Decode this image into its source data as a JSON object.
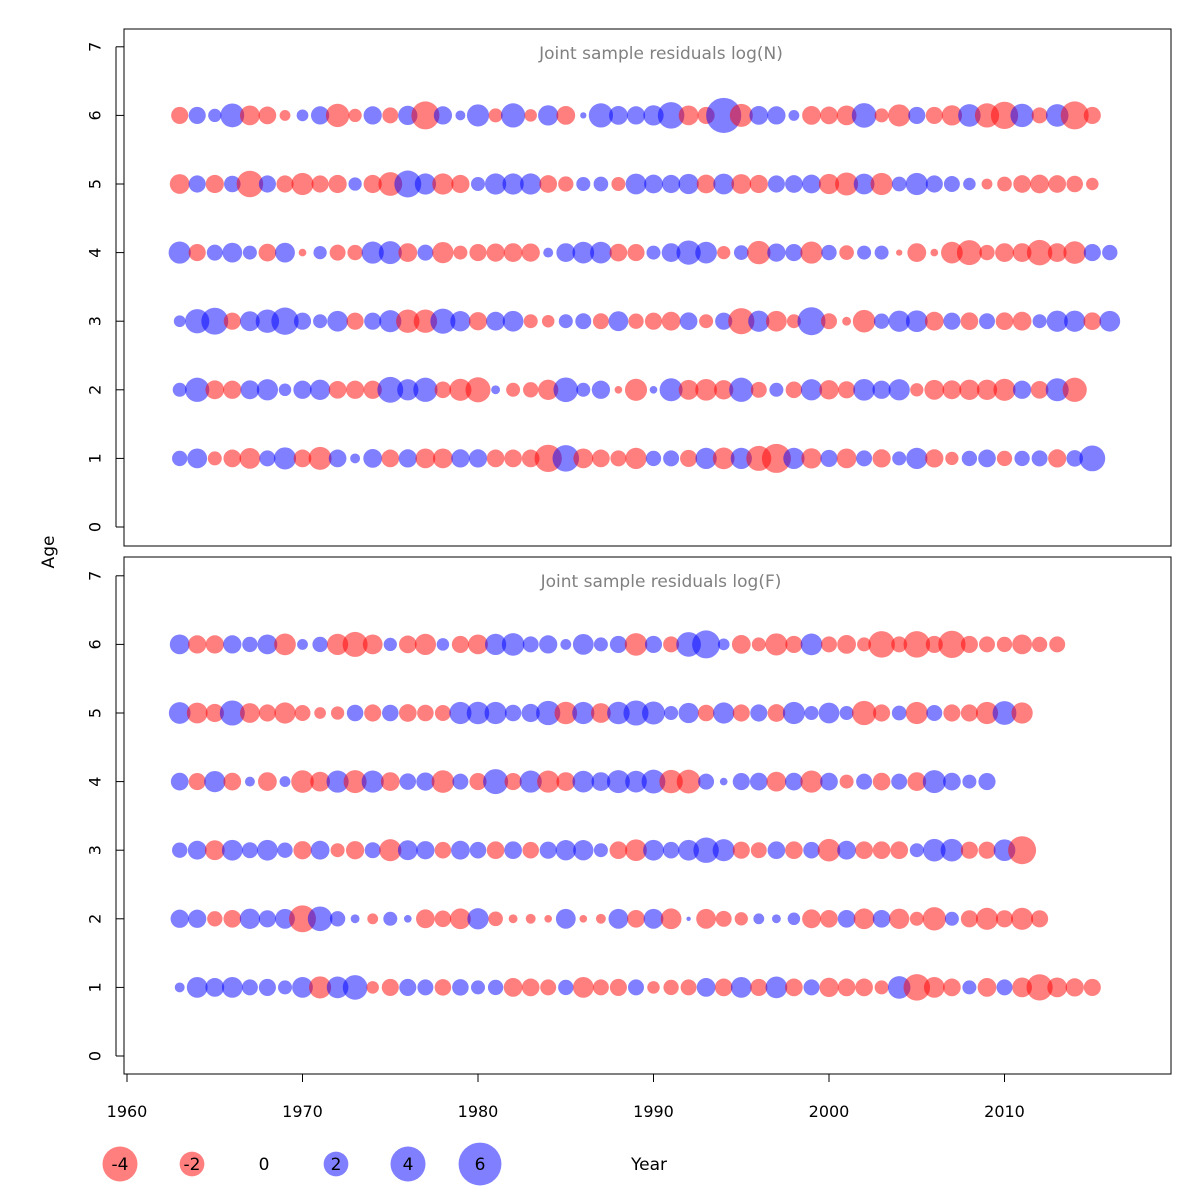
{
  "chart_data": {
    "type": "bubble",
    "ylabel": "Age",
    "xlabel": "Year",
    "xlim": [
      1960,
      2018
    ],
    "ylim": [
      0,
      7
    ],
    "xticks": [
      "1960",
      "1970",
      "1980",
      "1990",
      "2000",
      "2010"
    ],
    "yticks": [
      "0",
      "1",
      "2",
      "3",
      "4",
      "5",
      "6",
      "7"
    ],
    "years": [
      1963,
      1964,
      1965,
      1966,
      1967,
      1968,
      1969,
      1970,
      1971,
      1972,
      1973,
      1974,
      1975,
      1976,
      1977,
      1978,
      1979,
      1980,
      1981,
      1982,
      1983,
      1984,
      1985,
      1986,
      1987,
      1988,
      1989,
      1990,
      1991,
      1992,
      1993,
      1994,
      1995,
      1996,
      1997,
      1998,
      1999,
      2000,
      2001,
      2002,
      2003,
      2004,
      2005,
      2006,
      2007,
      2008,
      2009,
      2010,
      2011,
      2012,
      2013,
      2014,
      2015,
      2016
    ],
    "ages": [
      1,
      2,
      3,
      4,
      5,
      6
    ],
    "colors": {
      "negative": "#ff0000",
      "positive": "#0000ff",
      "opacity": 0.5
    },
    "panels": [
      {
        "title": "Joint sample residuals log(N)",
        "residuals": {
          "6": [
            -1.5,
            1.5,
            0.9,
            2.9,
            -2.0,
            -1.6,
            -0.6,
            0.7,
            1.7,
            -2.8,
            -0.9,
            1.7,
            -1.3,
            1.9,
            -4.0,
            1.7,
            0.5,
            2.5,
            -1.0,
            3.0,
            -0.8,
            2.1,
            -1.8,
            0.2,
            3.0,
            1.8,
            1.7,
            2.1,
            3.6,
            -2.0,
            -1.5,
            6.3,
            -2.7,
            1.8,
            1.7,
            0.6,
            -1.8,
            -1.6,
            -2.0,
            3.1,
            -1.0,
            -2.5,
            1.5,
            -1.5,
            -2.1,
            2.6,
            -3.0,
            -3.8,
            2.8,
            -1.3,
            2.6,
            -4.0,
            -1.5,
            0.0
          ],
          "5": [
            -2.0,
            1.5,
            -1.7,
            1.4,
            -3.6,
            1.5,
            -1.5,
            -2.5,
            -1.5,
            -1.7,
            0.9,
            -1.7,
            -2.9,
            3.7,
            2.3,
            -2.3,
            -1.7,
            1.0,
            2.3,
            2.3,
            2.3,
            -1.6,
            -1.2,
            1.0,
            1.1,
            -1.0,
            2.2,
            1.8,
            1.7,
            2.1,
            -1.8,
            2.2,
            -2.0,
            -1.7,
            1.5,
            1.6,
            1.8,
            -2.1,
            -2.7,
            2.2,
            -2.5,
            1.1,
            2.5,
            1.5,
            1.3,
            0.8,
            -0.6,
            -1.1,
            -1.6,
            -1.8,
            -1.6,
            -1.4,
            -0.8,
            0.0
          ],
          "4": [
            2.5,
            -1.5,
            1.3,
            2.0,
            1.0,
            -1.6,
            2.0,
            -0.3,
            0.9,
            -1.3,
            -1.2,
            2.5,
            2.7,
            -1.8,
            1.3,
            -2.3,
            -1.0,
            -1.5,
            -1.7,
            -1.8,
            -1.7,
            0.5,
            1.8,
            2.4,
            2.4,
            -1.6,
            -1.5,
            1.0,
            1.8,
            3.0,
            2.4,
            -0.9,
            1.1,
            -2.8,
            1.7,
            1.5,
            -2.5,
            1.2,
            -1.1,
            1.0,
            1.0,
            -0.2,
            -1.8,
            -0.3,
            -2.4,
            -3.2,
            -1.2,
            -1.8,
            -1.8,
            -3.3,
            -1.8,
            -2.6,
            1.5,
            1.2
          ],
          "3": [
            0.7,
            3.0,
            3.7,
            -1.5,
            2.0,
            2.8,
            3.8,
            1.5,
            1.0,
            2.2,
            -1.5,
            1.5,
            2.5,
            -2.8,
            -2.8,
            3.2,
            2.1,
            -1.7,
            1.8,
            2.2,
            -1.0,
            -0.8,
            1.0,
            1.3,
            -1.3,
            2.0,
            -1.2,
            -1.5,
            -1.8,
            1.6,
            -1.0,
            1.5,
            -3.5,
            2.3,
            -2.2,
            -1.0,
            4.0,
            -1.3,
            -0.4,
            -2.6,
            1.2,
            2.3,
            2.4,
            -1.8,
            1.5,
            -1.6,
            1.3,
            -1.6,
            -1.8,
            1.0,
            2.3,
            2.3,
            -1.6,
            2.2
          ],
          "2": [
            1.0,
            3.0,
            -1.8,
            -1.7,
            1.8,
            2.3,
            0.8,
            1.7,
            2.1,
            -1.6,
            -1.7,
            -1.7,
            3.4,
            2.3,
            3.0,
            -1.4,
            -2.5,
            -3.2,
            0.4,
            -1.0,
            -1.2,
            -2.1,
            3.1,
            1.0,
            1.7,
            -0.3,
            -2.5,
            0.3,
            2.7,
            -2.0,
            -2.4,
            -1.9,
            3.0,
            -1.3,
            1.0,
            -1.4,
            2.3,
            -1.9,
            -1.5,
            2.4,
            1.7,
            2.3,
            -0.9,
            -2.0,
            -1.8,
            -2.1,
            -2.1,
            -2.5,
            1.7,
            -1.6,
            2.7,
            -3.0,
            0.0,
            0.0
          ],
          "1": [
            1.2,
            2.0,
            -1.0,
            -1.6,
            -2.2,
            1.3,
            2.5,
            -1.6,
            -2.7,
            1.6,
            0.5,
            1.8,
            -1.6,
            1.7,
            -2.0,
            -2.0,
            1.7,
            1.7,
            -1.6,
            -1.6,
            -1.6,
            -3.8,
            3.6,
            -2.0,
            -1.6,
            -1.3,
            -2.3,
            1.2,
            1.3,
            -1.5,
            2.3,
            -2.4,
            2.3,
            -3.2,
            -4.3,
            2.3,
            -2.1,
            1.5,
            -2.0,
            1.3,
            -1.7,
            1.0,
            2.3,
            -1.7,
            -0.9,
            1.2,
            1.6,
            -1.2,
            1.2,
            1.3,
            -1.7,
            1.4,
            3.4,
            0.0
          ]
        }
      },
      {
        "title": "Joint sample residuals log(F)",
        "residuals": {
          "6": [
            2.0,
            -1.7,
            -1.7,
            1.7,
            1.2,
            2.0,
            -2.4,
            0.6,
            1.2,
            -2.3,
            -3.2,
            -2.0,
            0.9,
            -1.6,
            -2.3,
            0.8,
            -1.5,
            -2.0,
            2.3,
            2.6,
            1.3,
            1.7,
            0.6,
            2.2,
            1.0,
            1.5,
            -2.6,
            1.5,
            -1.3,
            3.1,
            4.0,
            0.7,
            -1.8,
            -1.0,
            -2.5,
            -1.5,
            2.4,
            -1.3,
            -1.8,
            -1.0,
            -3.6,
            -1.3,
            -3.6,
            -1.5,
            -3.8,
            -1.5,
            -1.3,
            -1.2,
            -2.0,
            -1.2,
            -1.3,
            0.0,
            0.0,
            0.0
          ],
          "5": [
            2.4,
            -2.2,
            -1.7,
            3.2,
            -2.0,
            -1.5,
            -2.3,
            -1.3,
            -0.7,
            -0.9,
            1.4,
            -1.5,
            1.4,
            -1.6,
            -1.4,
            -1.3,
            2.5,
            2.6,
            2.5,
            1.4,
            1.7,
            3.0,
            -2.6,
            2.5,
            -2.0,
            2.6,
            3.2,
            2.7,
            1.0,
            2.1,
            -1.4,
            2.3,
            -1.5,
            1.5,
            -1.6,
            2.5,
            1.0,
            2.2,
            1.0,
            -3.0,
            -1.5,
            1.1,
            -2.5,
            1.3,
            -1.5,
            -1.5,
            -2.5,
            2.9,
            -2.3,
            0.0,
            0.0,
            0.0,
            0.0,
            0.0
          ],
          "4": [
            1.6,
            -1.5,
            2.3,
            -1.6,
            0.5,
            -1.8,
            0.6,
            -2.6,
            -2.0,
            2.5,
            -2.7,
            2.5,
            -1.8,
            1.4,
            1.7,
            -2.6,
            1.3,
            -1.5,
            3.2,
            -1.5,
            2.5,
            -2.5,
            -1.8,
            2.4,
            1.8,
            2.7,
            2.4,
            2.9,
            -2.8,
            -2.9,
            1.3,
            0.3,
            1.5,
            1.6,
            -2.0,
            1.6,
            -2.5,
            1.6,
            -1.0,
            1.3,
            -1.6,
            1.3,
            -1.8,
            2.7,
            1.6,
            1.0,
            1.5,
            0.0,
            0.0,
            0.0,
            0.0,
            0.0,
            0.0,
            0.0
          ],
          "3": [
            1.2,
            1.8,
            -2.0,
            2.2,
            1.3,
            2.2,
            1.2,
            -1.7,
            1.8,
            -1.0,
            -1.7,
            1.3,
            -2.5,
            2.0,
            1.7,
            -1.4,
            1.8,
            1.4,
            -1.6,
            1.6,
            -1.4,
            1.5,
            2.1,
            2.1,
            1.0,
            -1.6,
            -2.4,
            2.2,
            1.4,
            2.2,
            3.3,
            2.5,
            -1.5,
            -1.3,
            1.6,
            -1.6,
            1.4,
            -2.6,
            1.8,
            -1.6,
            -1.6,
            -1.6,
            1.0,
            2.6,
            2.6,
            -1.5,
            -1.5,
            2.4,
            -4.0,
            0.0,
            0.0,
            0.0,
            0.0,
            0.0
          ],
          "2": [
            1.7,
            1.7,
            -1.2,
            -1.6,
            2.1,
            1.5,
            2.0,
            -3.7,
            3.1,
            1.2,
            0.4,
            -0.6,
            1.0,
            0.3,
            -1.8,
            -1.4,
            -2.2,
            2.3,
            -1.1,
            -0.4,
            -0.5,
            -0.3,
            2.0,
            -0.3,
            -0.5,
            2.0,
            -1.6,
            2.0,
            -2.2,
            0.1,
            -2.0,
            -1.3,
            -0.9,
            0.6,
            0.4,
            0.8,
            -1.8,
            -1.6,
            1.6,
            -2.2,
            1.6,
            -2.1,
            -1.0,
            -2.8,
            1.0,
            -1.5,
            -2.5,
            -1.5,
            -2.5,
            -1.5,
            0.0,
            0.0,
            0.0,
            0.0
          ],
          "1": [
            0.5,
            2.2,
            1.8,
            2.2,
            1.3,
            1.5,
            1.0,
            2.2,
            -2.5,
            2.4,
            3.1,
            -0.8,
            -1.5,
            1.5,
            1.3,
            -1.4,
            1.4,
            1.0,
            1.2,
            -1.8,
            -1.6,
            -1.3,
            1.2,
            -2.2,
            -1.3,
            -1.5,
            1.3,
            -0.8,
            -1.2,
            -1.3,
            1.8,
            -1.6,
            2.2,
            -1.5,
            2.4,
            -1.6,
            1.3,
            -1.9,
            -1.6,
            -1.6,
            -1.0,
            2.6,
            -3.6,
            -2.2,
            -1.6,
            1.0,
            -1.8,
            1.3,
            -2.0,
            -3.5,
            -2.0,
            -1.7,
            -1.5,
            0.0
          ]
        }
      }
    ],
    "legend": {
      "values": [
        -4,
        -2,
        0,
        2,
        4,
        6
      ],
      "labels": [
        "-4",
        "-2",
        "0",
        "2",
        "4",
        "6"
      ]
    }
  }
}
